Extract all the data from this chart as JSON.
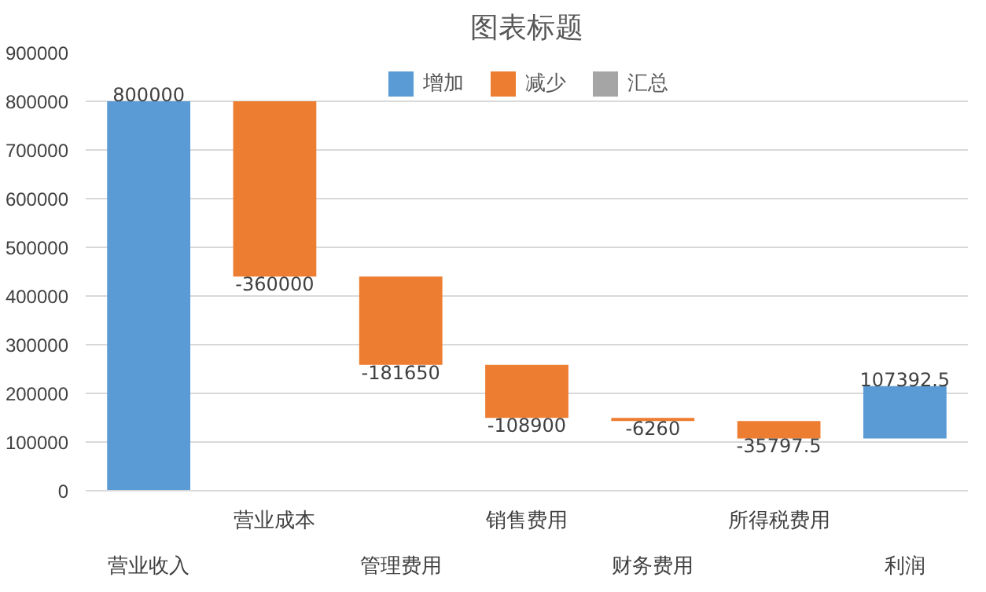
{
  "chart_data": {
    "type": "bar",
    "title": "图表标题",
    "categories": [
      "营业收入",
      "营业成本",
      "管理费用",
      "销售费用",
      "财务费用",
      "所得税费用",
      "利润"
    ],
    "series": [
      {
        "name": "增加",
        "color": "#5b9bd5",
        "values": [
          800000,
          null,
          null,
          null,
          null,
          null,
          107392.5
        ],
        "base": [
          0,
          null,
          null,
          null,
          null,
          null,
          107392.5
        ]
      },
      {
        "name": "减少",
        "color": "#ed7d31",
        "values": [
          null,
          -360000,
          -181650,
          -108900,
          -6260,
          -35797.5,
          null
        ],
        "base": [
          null,
          800000,
          440000,
          258350,
          149450,
          143190,
          null
        ]
      },
      {
        "name": "汇总",
        "color": "#a5a5a5",
        "values": [
          null,
          null,
          null,
          null,
          null,
          null,
          null
        ]
      }
    ],
    "ylim": [
      0,
      900000
    ],
    "yticks": [
      0,
      100000,
      200000,
      300000,
      400000,
      500000,
      600000,
      700000,
      800000,
      900000
    ],
    "grid": "y",
    "legend": "top",
    "data_labels": true
  }
}
